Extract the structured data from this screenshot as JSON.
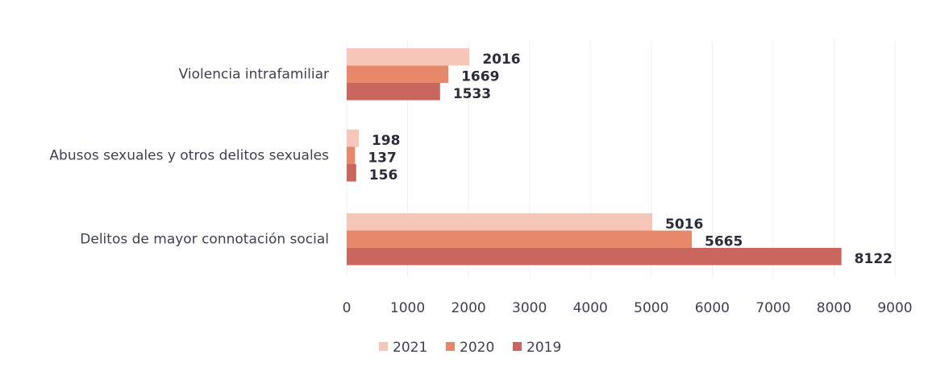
{
  "chart_data": {
    "type": "hbar",
    "categories": [
      "Violencia intrafamiliar",
      "Abusos sexuales y otros delitos sexuales",
      "Delitos de mayor connotación social"
    ],
    "series": [
      {
        "name": "2021",
        "color": "#f6c6b8",
        "values": [
          2016,
          198,
          5016
        ]
      },
      {
        "name": "2020",
        "color": "#e8886a",
        "values": [
          1669,
          137,
          5665
        ]
      },
      {
        "name": "2019",
        "color": "#c9665e",
        "values": [
          1533,
          156,
          8122
        ]
      }
    ],
    "xlim": [
      0,
      9000
    ],
    "xticks": [
      0,
      1000,
      2000,
      3000,
      4000,
      5000,
      6000,
      7000,
      8000,
      9000
    ],
    "grid": true
  }
}
